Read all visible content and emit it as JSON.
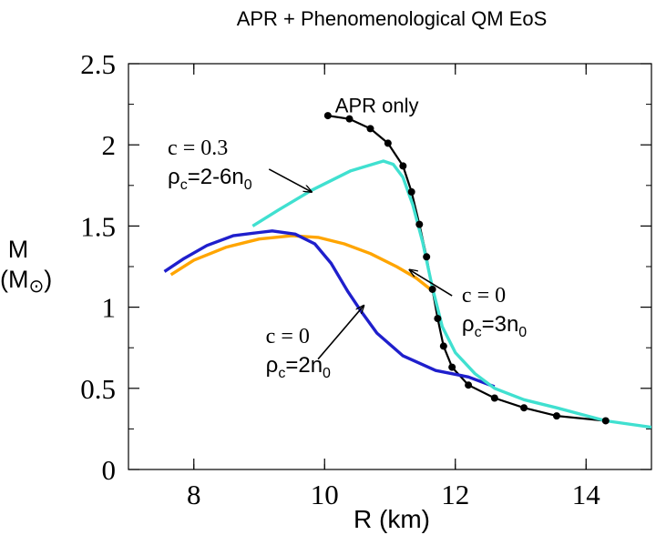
{
  "chart_data": {
    "type": "line",
    "title": "APR + Phenomenological QM EoS",
    "xlabel": "R (km)",
    "ylabel_top": "M",
    "ylabel_bottom": "(M",
    "ylabel_sub": "⊙",
    "ylabel_close": ")",
    "xlim": [
      7,
      15
    ],
    "ylim": [
      0,
      2.5
    ],
    "xticks": [
      8,
      10,
      12,
      14
    ],
    "xtick_labels": [
      "8",
      "10",
      "12",
      "14"
    ],
    "yticks": [
      0,
      0.5,
      1,
      1.5,
      2,
      2.5
    ],
    "ytick_labels": [
      "0",
      "0.5",
      "1",
      "1.5",
      "2",
      "2.5"
    ],
    "grid": false,
    "legend": "none",
    "series": [
      {
        "name": "APR only",
        "color": "#000000",
        "markers": true,
        "x": [
          10.05,
          10.38,
          10.7,
          10.97,
          11.2,
          11.33,
          11.45,
          11.56,
          11.65,
          11.73,
          11.82,
          11.95,
          12.2,
          12.6,
          13.05,
          13.55,
          14.3,
          15.0
        ],
        "y": [
          2.18,
          2.16,
          2.1,
          2.01,
          1.87,
          1.71,
          1.51,
          1.31,
          1.11,
          0.93,
          0.76,
          0.63,
          0.52,
          0.44,
          0.38,
          0.33,
          0.3,
          0.26
        ]
      },
      {
        "name": "c = 0.3 ρc=2-6n0",
        "color": "#40e0d0",
        "markers": false,
        "x": [
          8.9,
          9.3,
          9.8,
          10.4,
          10.9,
          11.05,
          11.2,
          11.35,
          11.5,
          11.65,
          11.8,
          12.0,
          12.3,
          12.6,
          13.05,
          13.55,
          14.3,
          15.0
        ],
        "y": [
          1.5,
          1.6,
          1.72,
          1.84,
          1.9,
          1.88,
          1.8,
          1.63,
          1.4,
          1.12,
          0.88,
          0.72,
          0.59,
          0.5,
          0.43,
          0.38,
          0.3,
          0.26
        ]
      },
      {
        "name": "c = 0 ρc=3n0",
        "color": "#ffa500",
        "markers": false,
        "x": [
          7.65,
          8.0,
          8.5,
          9.0,
          9.5,
          9.9,
          10.3,
          10.7,
          11.1,
          11.4,
          11.62
        ],
        "y": [
          1.2,
          1.29,
          1.37,
          1.42,
          1.44,
          1.43,
          1.39,
          1.33,
          1.25,
          1.18,
          1.11
        ]
      },
      {
        "name": "c = 0 ρc=2n0",
        "color": "#1f1fcc",
        "markers": false,
        "x": [
          7.55,
          7.85,
          8.2,
          8.6,
          9.0,
          9.2,
          9.55,
          9.85,
          10.1,
          10.35,
          10.55,
          10.8,
          11.2,
          11.7,
          12.2,
          12.6
        ],
        "y": [
          1.22,
          1.3,
          1.38,
          1.44,
          1.46,
          1.47,
          1.45,
          1.39,
          1.27,
          1.1,
          0.98,
          0.84,
          0.7,
          0.61,
          0.57,
          0.51
        ]
      }
    ],
    "annotations": [
      {
        "line1": "APR only",
        "tx": 10.8,
        "ty": 2.2
      },
      {
        "line1": "c = 0.3",
        "line2": "ρ",
        "line2_sub": "c",
        "line2_rest": "=2-6n",
        "line2_sub2": "0",
        "tx": 7.6,
        "ty": 1.94,
        "arrow_from": [
          9.15,
          1.85
        ],
        "arrow_to": [
          9.8,
          1.71
        ]
      },
      {
        "line1": "c = 0",
        "line2": "ρ",
        "line2_sub": "c",
        "line2_rest": "=3n",
        "line2_sub2": "0",
        "tx": 12.1,
        "ty": 1.03,
        "arrow_from": [
          11.95,
          1.07
        ],
        "arrow_to": [
          11.3,
          1.23
        ]
      },
      {
        "line1": "c = 0",
        "line2": "ρ",
        "line2_sub": "c",
        "line2_rest": "=2n",
        "line2_sub2": "0",
        "tx": 9.1,
        "ty": 0.78,
        "arrow_from": [
          9.9,
          0.68
        ],
        "arrow_to": [
          10.6,
          1.01
        ]
      }
    ]
  }
}
